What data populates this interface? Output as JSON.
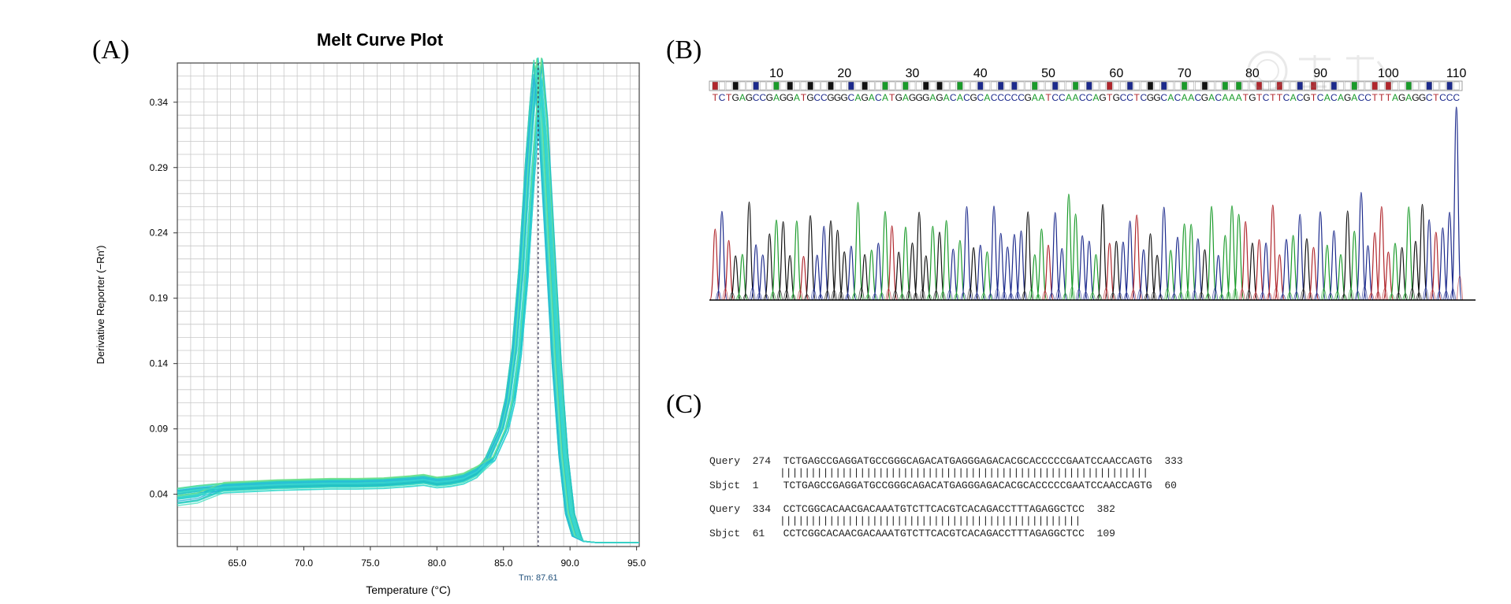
{
  "panels": {
    "a": "(A)",
    "b": "(B)",
    "c": "(C)"
  },
  "chart_data": [
    {
      "type": "line",
      "title": "Melt Curve Plot",
      "xlabel": "Temperature (°C)",
      "ylabel": "Derivative Reporter (−Rn′)",
      "xlim": [
        60.5,
        95.2
      ],
      "ylim": [
        0,
        0.37
      ],
      "x_ticks": [
        "65.0",
        "70.0",
        "75.0",
        "80.0",
        "85.0",
        "90.0",
        "95.0"
      ],
      "y_ticks": [
        "0.04",
        "0.09",
        "0.14",
        "0.19",
        "0.24",
        "0.29",
        "0.34"
      ],
      "grid": true,
      "marker_label": "Tm: 87.61",
      "marker_x": 87.61,
      "curve_color": "#2ed4cc",
      "series": [
        {
          "x": [
            60.5,
            62,
            64,
            66,
            68,
            70,
            72,
            74,
            76,
            78,
            79,
            80,
            81,
            82,
            83,
            84,
            85,
            85.5,
            86,
            86.5,
            87,
            87.3,
            87.61,
            88,
            88.5,
            89,
            89.5,
            90,
            90.5,
            91,
            92,
            93,
            94,
            95.2
          ],
          "values": [
            0.041,
            0.043,
            0.045,
            0.046,
            0.047,
            0.0475,
            0.048,
            0.048,
            0.0485,
            0.05,
            0.051,
            0.049,
            0.05,
            0.052,
            0.057,
            0.067,
            0.09,
            0.112,
            0.15,
            0.21,
            0.29,
            0.33,
            0.365,
            0.32,
            0.23,
            0.14,
            0.07,
            0.025,
            0.008,
            0.004,
            0.003,
            0.003,
            0.003,
            0.003
          ]
        }
      ]
    },
    {
      "type": "line",
      "title": "",
      "position_labels": [
        "10",
        "20",
        "30",
        "40",
        "50",
        "60",
        "70",
        "80",
        "90",
        "100",
        "110"
      ],
      "sequence": "TCTGAGCCGAGGATGCCGGGCAGACATGAGGGAGACACGCACCCCCGAATCCAACCAGTGCCTCGGCACAACGACAAATGTCTTCACGTCACAGACCTTTAGAGGCTCCC",
      "trace_colors": {
        "A": "#1a9b2a",
        "C": "#1c2a8c",
        "G": "#111111",
        "T": "#b0262c"
      }
    }
  ],
  "alignment": [
    {
      "query_label": "Query",
      "query_start": "274",
      "query_seq": "TCTGAGCCGAGGATGCCGGGCAGACATGAGGGAGACACGCACCCCCGAATCCAACCAGTG",
      "query_end": "333",
      "bars": "||||||||||||||||||||||||||||||||||||||||||||||||||||||||||||",
      "sbjct_label": "Sbjct",
      "sbjct_start": "1",
      "sbjct_seq": "TCTGAGCCGAGGATGCCGGGCAGACATGAGGGAGACACGCACCCCCGAATCCAACCAGTG",
      "sbjct_end": "60"
    },
    {
      "query_label": "Query",
      "query_start": "334",
      "query_seq": "CCTCGGCACAACGACAAATGTCTTCACGTCACAGACCTTTAGAGGCTCC",
      "query_end": "382",
      "bars": "|||||||||||||||||||||||||||||||||||||||||||||||||",
      "sbjct_label": "Sbjct",
      "sbjct_start": "61",
      "sbjct_seq": "CCTCGGCACAACGACAAATGTCTTCACGTCACAGACCTTTAGAGGCTCC",
      "sbjct_end": "109"
    }
  ]
}
